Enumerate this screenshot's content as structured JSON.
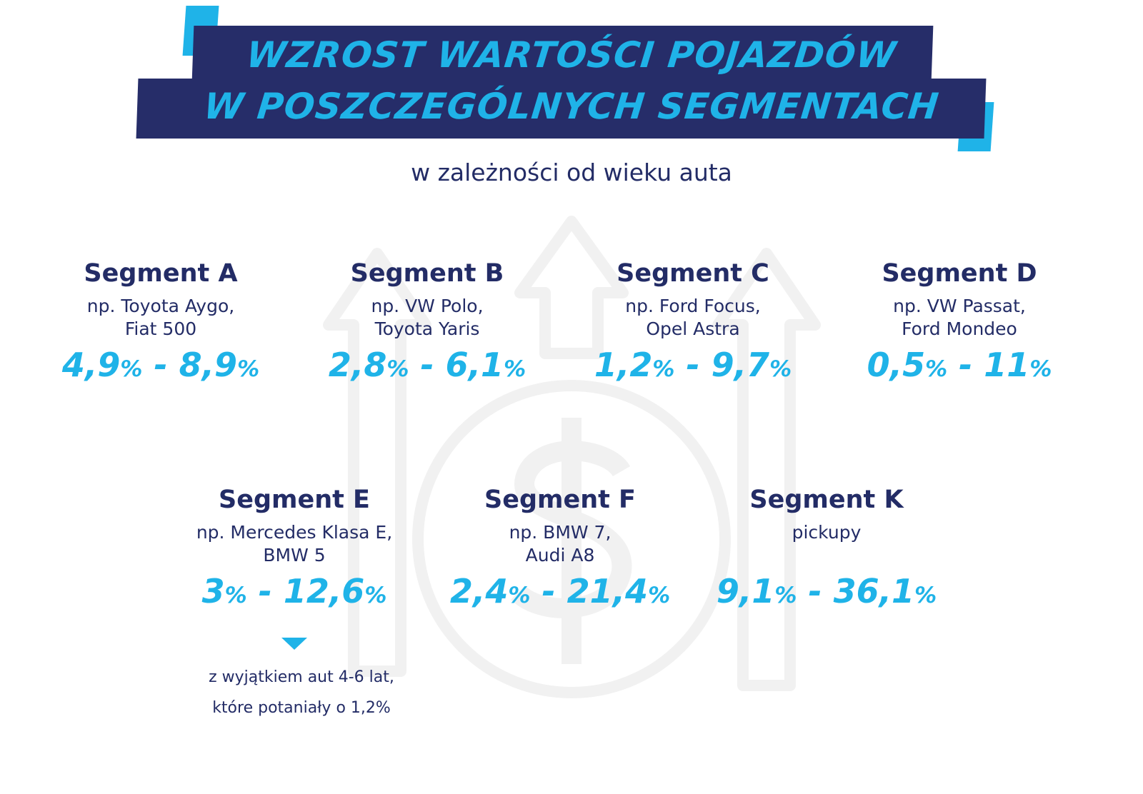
{
  "header": {
    "title_line1": "WZROST WARTOŚCI POJAZDÓW",
    "title_line2": "W POSZCZEGÓLNYCH SEGMENTACH",
    "subtitle": "w zależności od wieku auta"
  },
  "colors": {
    "navy": "#262d69",
    "accent": "#1fb3e8",
    "background_icons": "#f2f2f2"
  },
  "background_icons": [
    "arrow-up-icon",
    "dollar-coin-icon"
  ],
  "segments": [
    {
      "title": "Segment A",
      "desc1": "np. Toyota Aygo,",
      "desc2": "Fiat 500",
      "from": "4,9",
      "to": "8,9",
      "unit": "%"
    },
    {
      "title": "Segment B",
      "desc1": "np. VW Polo,",
      "desc2": "Toyota Yaris",
      "from": "2,8",
      "to": "6,1",
      "unit": "%"
    },
    {
      "title": "Segment C",
      "desc1": "np. Ford Focus,",
      "desc2": "Opel Astra",
      "from": "1,2",
      "to": "9,7",
      "unit": "%"
    },
    {
      "title": "Segment D",
      "desc1": "np. VW Passat,",
      "desc2": "Ford Mondeo",
      "from": "0,5",
      "to": "11",
      "unit": "%"
    },
    {
      "title": "Segment E",
      "desc1": "np. Mercedes Klasa E,",
      "desc2": "BMW 5",
      "from": "3",
      "to": "12,6",
      "unit": "%"
    },
    {
      "title": "Segment F",
      "desc1": "np. BMW 7,",
      "desc2": "Audi A8",
      "from": "2,4",
      "to": "21,4",
      "unit": "%"
    },
    {
      "title": "Segment K",
      "desc1": "pickupy",
      "desc2": "",
      "from": "9,1",
      "to": "36,1",
      "unit": "%"
    }
  ],
  "range_separator": " - ",
  "note": {
    "line1": "z wyjątkiem aut 4-6 lat,",
    "line2": "które potaniały o 1,2%"
  }
}
